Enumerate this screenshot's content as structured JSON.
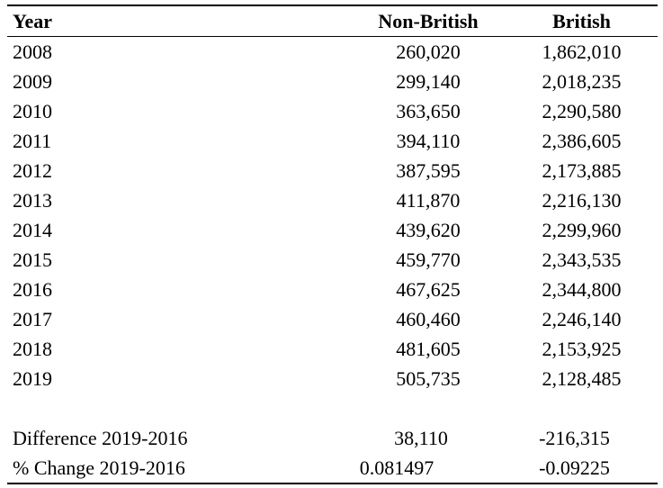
{
  "page": {
    "background_color": "#ffffff",
    "text_color": "#000000",
    "rule_color": "#000000"
  },
  "table": {
    "columns": [
      {
        "key": "year",
        "label": "Year"
      },
      {
        "key": "non_british",
        "label": "Non-British"
      },
      {
        "key": "british",
        "label": "British"
      }
    ],
    "rows": [
      {
        "year": "2008",
        "non_british": "260,020",
        "british": "1,862,010"
      },
      {
        "year": "2009",
        "non_british": "299,140",
        "british": "2,018,235"
      },
      {
        "year": "2010",
        "non_british": "363,650",
        "british": "2,290,580"
      },
      {
        "year": "2011",
        "non_british": "394,110",
        "british": "2,386,605"
      },
      {
        "year": "2012",
        "non_british": "387,595",
        "british": "2,173,885"
      },
      {
        "year": "2013",
        "non_british": "411,870",
        "british": "2,216,130"
      },
      {
        "year": "2014",
        "non_british": "439,620",
        "british": "2,299,960"
      },
      {
        "year": "2015",
        "non_british": "459,770",
        "british": "2,343,535"
      },
      {
        "year": "2016",
        "non_british": "467,625",
        "british": "2,344,800"
      },
      {
        "year": "2017",
        "non_british": "460,460",
        "british": "2,246,140"
      },
      {
        "year": "2018",
        "non_british": "481,605",
        "british": "2,153,925"
      },
      {
        "year": "2019",
        "non_british": "505,735",
        "british": "2,128,485"
      }
    ],
    "summary_rows": [
      {
        "label": "Difference 2019-2016",
        "non_british": "38,110",
        "british": "-216,315"
      },
      {
        "label": "% Change 2019-2016",
        "non_british": "0.081497",
        "british": "-0.09225"
      }
    ]
  }
}
